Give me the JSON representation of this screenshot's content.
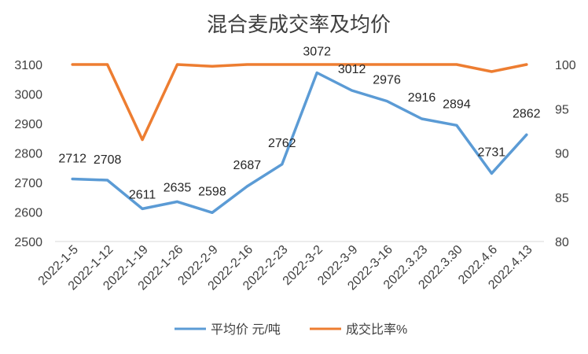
{
  "chart_data": {
    "type": "line",
    "title": "混合麦成交率及均价",
    "categories": [
      "2022-1-5",
      "2022-1-12",
      "2022-1-19",
      "2022-1-26",
      "2022-2-9",
      "2022-2-16",
      "2022-2-23",
      "2022-3-2",
      "2022-3-9",
      "2022-3-16",
      "2022.3.23",
      "2022.3.30",
      "2022.4.6",
      "2022.4.13"
    ],
    "series": [
      {
        "name": "平均价 元/吨",
        "axis": "left",
        "color": "#5b9bd5",
        "values": [
          2712,
          2708,
          2611,
          2635,
          2598,
          2687,
          2762,
          3072,
          3012,
          2976,
          2916,
          2894,
          2731,
          2862
        ],
        "data_labels": [
          "2712",
          "2708",
          "2611",
          "2635",
          "2598",
          "2687",
          "2762",
          "3072",
          "3012",
          "2976",
          "2916",
          "2894",
          "2731",
          "2862"
        ]
      },
      {
        "name": "成交比率%",
        "axis": "right",
        "color": "#ed7d31",
        "values": [
          100,
          100,
          91.5,
          100,
          99.8,
          100,
          100,
          100,
          100,
          100,
          100,
          100,
          99.2,
          100
        ]
      }
    ],
    "y_left": {
      "min": 2500,
      "max": 3100,
      "ticks": [
        "2500",
        "2600",
        "2700",
        "2800",
        "2900",
        "3000",
        "3100"
      ]
    },
    "y_right": {
      "min": 80,
      "max": 100,
      "ticks": [
        "80",
        "85",
        "90",
        "95",
        "100"
      ]
    },
    "grid": false,
    "legend_position": "bottom"
  }
}
